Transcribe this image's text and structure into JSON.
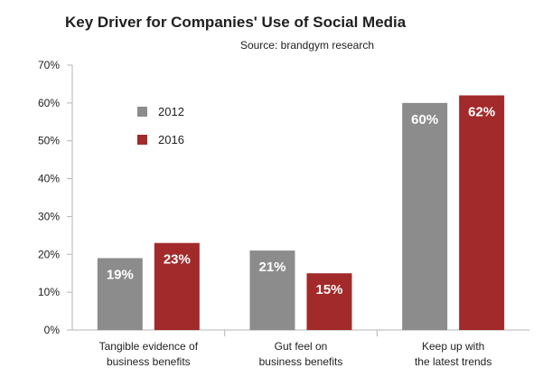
{
  "chart_data": {
    "type": "bar",
    "title": "Key Driver for Companies' Use of Social Media",
    "subtitle": "Source: brandgym research",
    "categories": [
      [
        "Tangible evidence of",
        "business benefits"
      ],
      [
        "Gut feel on",
        "business benefits"
      ],
      [
        "Keep up with",
        "the latest trends"
      ]
    ],
    "series": [
      {
        "name": "2012",
        "color": "#8c8c8c",
        "values": [
          19,
          21,
          60
        ],
        "labels": [
          "19%",
          "21%",
          "60%"
        ]
      },
      {
        "name": "2016",
        "color": "#a32a2a",
        "values": [
          23,
          15,
          62
        ],
        "labels": [
          "23%",
          "15%",
          "62%"
        ]
      }
    ],
    "ylim": [
      0,
      70
    ],
    "yticks": [
      0,
      10,
      20,
      30,
      40,
      50,
      60,
      70
    ],
    "ytick_labels": [
      "0%",
      "10%",
      "20%",
      "30%",
      "40%",
      "50%",
      "60%",
      "70%"
    ],
    "xlabel": "",
    "ylabel": "",
    "grid": false,
    "legend_position": "top-left"
  }
}
